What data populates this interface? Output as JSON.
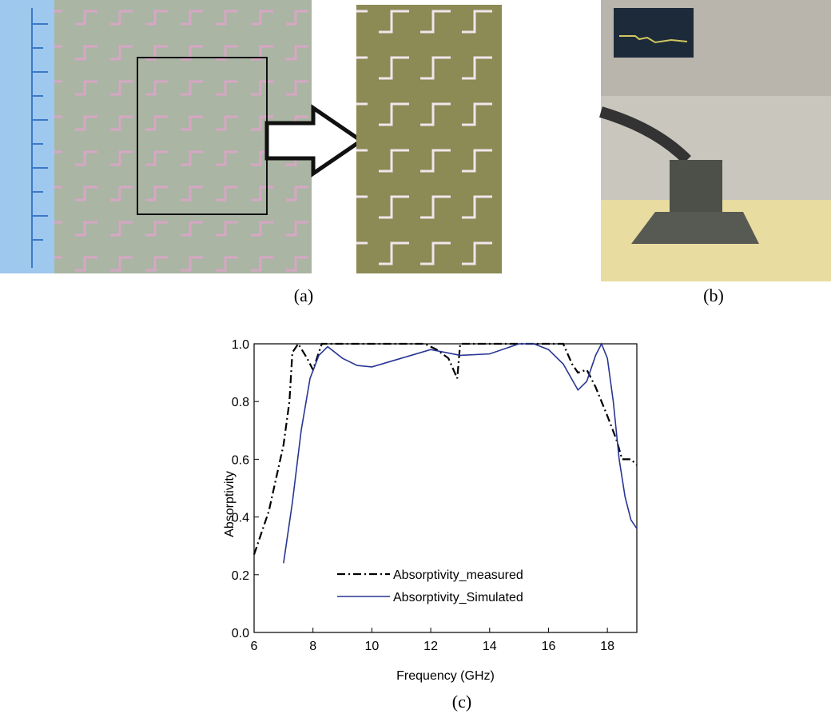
{
  "captions": [
    "(a)",
    "(b)",
    "(c)"
  ],
  "chart_data": {
    "type": "line",
    "xlabel": "Frequency (GHz)",
    "ylabel": "Absorptivity",
    "xlim": [
      6,
      19
    ],
    "xticks": [
      6,
      8,
      10,
      12,
      14,
      16,
      18
    ],
    "ylim": [
      0,
      1
    ],
    "yticks": [
      {
        "value": 0,
        "label": "0.0"
      },
      0.2,
      0.4,
      0.6,
      0.8,
      {
        "value": 1,
        "label": "1.0"
      }
    ],
    "series": [
      {
        "name": "Absorptivity_measured",
        "color": "#000000",
        "dash": "dashdot",
        "x": [
          6,
          6.5,
          7,
          7.2,
          7.3,
          7.5,
          7.8,
          8.0,
          8.3,
          9,
          10,
          11,
          11.8,
          12.2,
          12.6,
          12.9,
          13.0,
          14,
          15,
          16,
          16.5,
          16.8,
          17.0,
          17.3,
          17.6,
          18,
          18.3,
          18.5,
          18.8,
          19
        ],
        "values": [
          0.27,
          0.42,
          0.65,
          0.8,
          0.97,
          1.0,
          0.95,
          0.91,
          1.0,
          1.0,
          1.0,
          1.0,
          1.0,
          0.98,
          0.95,
          0.88,
          1.0,
          1.0,
          1.0,
          1.0,
          1.0,
          0.93,
          0.9,
          0.91,
          0.85,
          0.75,
          0.67,
          0.6,
          0.6,
          0.58
        ]
      },
      {
        "name": "Absorptivity_Simulated",
        "color": "#283593",
        "dash": "solid",
        "x": [
          7.0,
          7.3,
          7.6,
          7.9,
          8.2,
          8.5,
          9,
          9.5,
          10,
          11,
          12,
          13,
          14,
          15,
          15.5,
          16,
          16.5,
          17,
          17.3,
          17.6,
          17.8,
          18,
          18.2,
          18.4,
          18.6,
          18.8,
          19
        ],
        "values": [
          0.24,
          0.45,
          0.7,
          0.88,
          0.96,
          0.99,
          0.95,
          0.925,
          0.92,
          0.95,
          0.98,
          0.96,
          0.965,
          1.0,
          1.0,
          0.98,
          0.93,
          0.84,
          0.87,
          0.96,
          1.0,
          0.95,
          0.8,
          0.6,
          0.47,
          0.39,
          0.36
        ]
      }
    ]
  }
}
